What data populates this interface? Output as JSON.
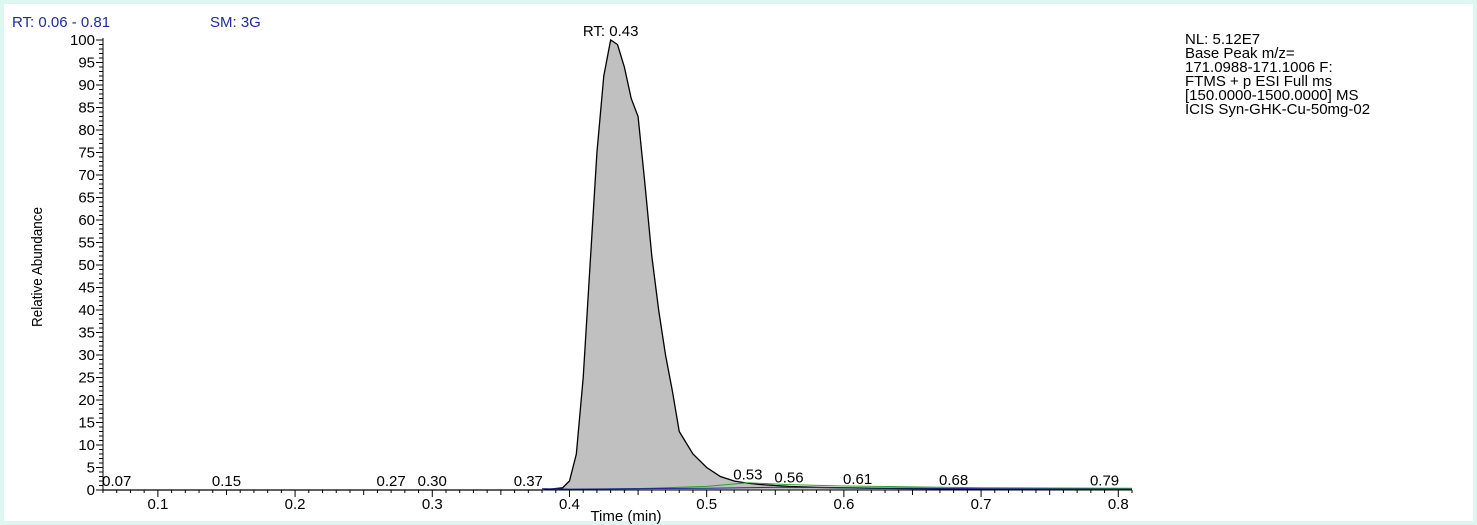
{
  "header": {
    "rt_range": "RT: 0.06 - 0.81",
    "smoothing": "SM: 3G"
  },
  "info": {
    "lines": [
      "NL: 5.12E7",
      "Base Peak m/z=",
      "171.0988-171.1006 F:",
      "FTMS + p ESI Full ms",
      "[150.0000-1500.0000]  MS",
      "ICIS Syn-GHK-Cu-50mg-02"
    ]
  },
  "colors": {
    "fill": "#c0c0c0",
    "trace": "#000000",
    "green_trace": "#2aa02a",
    "blue_trace": "#1f2a9b",
    "header": "#1f2a9b",
    "background": "#dcf7ef"
  },
  "chart_data": {
    "type": "area",
    "xlabel": "Time (min)",
    "ylabel": "Relative Abundance",
    "xlim": [
      0.06,
      0.81
    ],
    "ylim": [
      0,
      100
    ],
    "x_ticks": [
      "0.1",
      "0.2",
      "0.3",
      "0.4",
      "0.5",
      "0.6",
      "0.7",
      "0.8"
    ],
    "x_tick_values": [
      0.1,
      0.2,
      0.3,
      0.4,
      0.5,
      0.6,
      0.7,
      0.8
    ],
    "y_ticks": [
      "0",
      "5",
      "10",
      "15",
      "20",
      "25",
      "30",
      "35",
      "40",
      "45",
      "50",
      "55",
      "60",
      "65",
      "70",
      "75",
      "80",
      "85",
      "90",
      "95",
      "100"
    ],
    "y_tick_values": [
      0,
      5,
      10,
      15,
      20,
      25,
      30,
      35,
      40,
      45,
      50,
      55,
      60,
      65,
      70,
      75,
      80,
      85,
      90,
      95,
      100
    ],
    "series": [
      {
        "x": [
          0.06,
          0.38,
          0.395,
          0.4,
          0.405,
          0.41,
          0.415,
          0.42,
          0.425,
          0.43,
          0.435,
          0.44,
          0.445,
          0.45,
          0.455,
          0.46,
          0.465,
          0.47,
          0.475,
          0.48,
          0.49,
          0.5,
          0.51,
          0.52,
          0.53,
          0.54,
          0.55,
          0.56,
          0.57,
          0.58,
          0.6,
          0.62,
          0.65,
          0.7,
          0.81
        ],
        "y": [
          0,
          0,
          0.5,
          2,
          8,
          25,
          50,
          75,
          92,
          100,
          99,
          94,
          87,
          83,
          68,
          52,
          40,
          30,
          22,
          13,
          8,
          5,
          3,
          2,
          1.5,
          1.2,
          1,
          0.8,
          0.7,
          0.6,
          0.5,
          0.4,
          0.3,
          0.2,
          0.1
        ]
      }
    ],
    "peak_labels": [
      {
        "label": "RT: 0.43",
        "x": 0.43,
        "y": 100
      },
      {
        "label": "0.07",
        "x": 0.07,
        "y": 0
      },
      {
        "label": "0.15",
        "x": 0.15,
        "y": 0
      },
      {
        "label": "0.27",
        "x": 0.27,
        "y": 0
      },
      {
        "label": "0.30",
        "x": 0.3,
        "y": 0
      },
      {
        "label": "0.37",
        "x": 0.37,
        "y": 0
      },
      {
        "label": "0.53",
        "x": 0.53,
        "y": 1.5
      },
      {
        "label": "0.56",
        "x": 0.56,
        "y": 0.8
      },
      {
        "label": "0.61",
        "x": 0.61,
        "y": 0.4
      },
      {
        "label": "0.68",
        "x": 0.68,
        "y": 0.2
      },
      {
        "label": "0.79",
        "x": 0.79,
        "y": 0.1
      }
    ]
  }
}
